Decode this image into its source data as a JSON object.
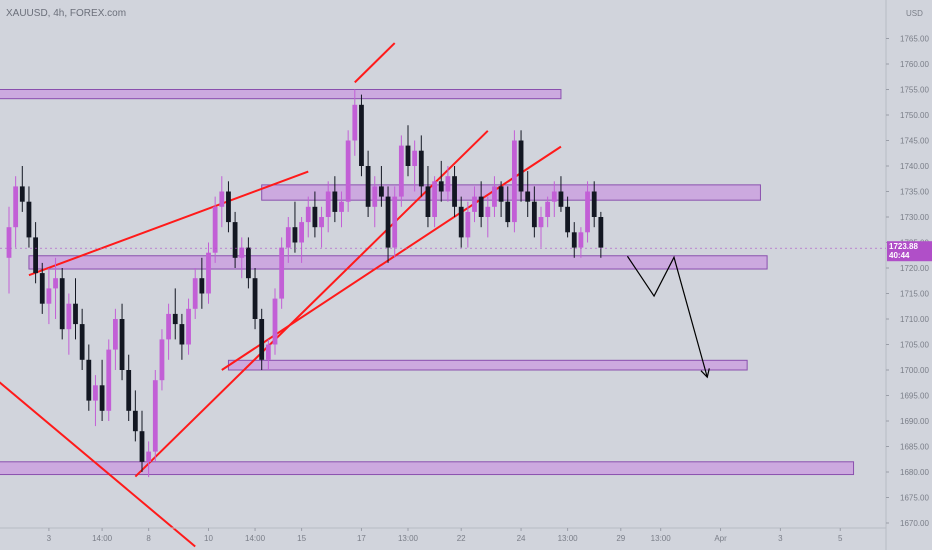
{
  "header": {
    "symbol": "XAUUSD, 4h, FOREX.com",
    "currency": "USD"
  },
  "colors": {
    "background": "#d1d4dc",
    "bull_candle": "#c25fd6",
    "bear_candle": "#131722",
    "zone_fill": "#c99be0",
    "zone_stroke": "#8a4fae",
    "trendline": "#ff1a1a",
    "projection": "#000000",
    "price_badge": "#b04fc8"
  },
  "chart_data": {
    "type": "candlestick",
    "symbol": "XAUUSD",
    "timeframe": "4h",
    "source": "FOREX.com",
    "y_axis": {
      "side": "right",
      "range": [
        1667.5,
        1767.5
      ],
      "tick_step": 5,
      "tick_labels": [
        "1670.00",
        "1675.00",
        "1680.00",
        "1685.00",
        "1690.00",
        "1695.00",
        "1700.00",
        "1705.00",
        "1710.00",
        "1715.00",
        "1720.00",
        "1725.00",
        "1730.00",
        "1735.00",
        "1740.00",
        "1745.00",
        "1750.00",
        "1755.00",
        "1760.00",
        "1765.00"
      ]
    },
    "x_axis": {
      "labels": [
        {
          "bar": 6,
          "label": "3"
        },
        {
          "bar": 14,
          "label": "14:00"
        },
        {
          "bar": 21,
          "label": "8"
        },
        {
          "bar": 30,
          "label": "10"
        },
        {
          "bar": 37,
          "label": "14:00"
        },
        {
          "bar": 44,
          "label": "15"
        },
        {
          "bar": 53,
          "label": "17"
        },
        {
          "bar": 60,
          "label": "13:00"
        },
        {
          "bar": 68,
          "label": "22"
        },
        {
          "bar": 77,
          "label": "24"
        },
        {
          "bar": 84,
          "label": "13:00"
        },
        {
          "bar": 92,
          "label": "29"
        },
        {
          "bar": 98,
          "label": "13:00"
        },
        {
          "bar": 107,
          "label": "Apr"
        },
        {
          "bar": 116,
          "label": "3"
        },
        {
          "bar": 125,
          "label": "5"
        }
      ]
    },
    "last_price": {
      "value": 1723.88,
      "label": "1723.88",
      "countdown": "40:44"
    },
    "grid": false,
    "candles": [
      [
        1722,
        1732,
        1715,
        1728
      ],
      [
        1728,
        1738,
        1724,
        1736
      ],
      [
        1736,
        1740,
        1731,
        1733
      ],
      [
        1733,
        1736,
        1724,
        1726
      ],
      [
        1726,
        1729,
        1717,
        1719
      ],
      [
        1719,
        1721,
        1711,
        1713
      ],
      [
        1713,
        1720,
        1709,
        1716
      ],
      [
        1716,
        1722,
        1710,
        1718
      ],
      [
        1718,
        1720,
        1706,
        1708
      ],
      [
        1708,
        1715,
        1703,
        1713
      ],
      [
        1713,
        1718,
        1706,
        1709
      ],
      [
        1709,
        1712,
        1700,
        1702
      ],
      [
        1702,
        1705,
        1692,
        1694
      ],
      [
        1694,
        1699,
        1689,
        1697
      ],
      [
        1697,
        1702,
        1690,
        1692
      ],
      [
        1692,
        1706,
        1690,
        1704
      ],
      [
        1704,
        1712,
        1700,
        1710
      ],
      [
        1710,
        1713,
        1698,
        1700
      ],
      [
        1700,
        1703,
        1690,
        1692
      ],
      [
        1692,
        1696,
        1686,
        1688
      ],
      [
        1688,
        1692,
        1680,
        1682
      ],
      [
        1682,
        1686,
        1679,
        1684
      ],
      [
        1684,
        1700,
        1682,
        1698
      ],
      [
        1698,
        1708,
        1696,
        1706
      ],
      [
        1706,
        1713,
        1702,
        1711
      ],
      [
        1711,
        1716,
        1706,
        1709
      ],
      [
        1709,
        1711,
        1702,
        1705
      ],
      [
        1705,
        1714,
        1703,
        1712
      ],
      [
        1712,
        1720,
        1710,
        1718
      ],
      [
        1718,
        1722,
        1712,
        1715
      ],
      [
        1715,
        1725,
        1713,
        1723
      ],
      [
        1723,
        1734,
        1721,
        1732
      ],
      [
        1732,
        1738,
        1728,
        1735
      ],
      [
        1735,
        1737,
        1727,
        1729
      ],
      [
        1729,
        1731,
        1720,
        1722
      ],
      [
        1722,
        1726,
        1718,
        1724
      ],
      [
        1724,
        1726,
        1716,
        1718
      ],
      [
        1718,
        1720,
        1708,
        1710
      ],
      [
        1710,
        1712,
        1700,
        1702
      ],
      [
        1702,
        1706,
        1700,
        1705
      ],
      [
        1705,
        1716,
        1703,
        1714
      ],
      [
        1714,
        1726,
        1712,
        1724
      ],
      [
        1724,
        1730,
        1721,
        1728
      ],
      [
        1728,
        1733,
        1723,
        1725
      ],
      [
        1725,
        1730,
        1721,
        1729
      ],
      [
        1729,
        1734,
        1726,
        1732
      ],
      [
        1732,
        1735,
        1726,
        1728
      ],
      [
        1728,
        1732,
        1724,
        1730
      ],
      [
        1730,
        1737,
        1727,
        1735
      ],
      [
        1735,
        1738,
        1729,
        1731
      ],
      [
        1731,
        1735,
        1728,
        1733
      ],
      [
        1733,
        1747,
        1731,
        1745
      ],
      [
        1745,
        1755,
        1742,
        1752
      ],
      [
        1752,
        1754,
        1738,
        1740
      ],
      [
        1740,
        1743,
        1730,
        1732
      ],
      [
        1732,
        1738,
        1728,
        1736
      ],
      [
        1736,
        1740,
        1732,
        1734
      ],
      [
        1734,
        1736,
        1721,
        1724
      ],
      [
        1724,
        1736,
        1722,
        1734
      ],
      [
        1734,
        1746,
        1732,
        1744
      ],
      [
        1744,
        1748,
        1738,
        1740
      ],
      [
        1740,
        1745,
        1735,
        1743
      ],
      [
        1743,
        1746,
        1734,
        1736
      ],
      [
        1736,
        1740,
        1728,
        1730
      ],
      [
        1730,
        1738,
        1728,
        1737
      ],
      [
        1737,
        1741,
        1733,
        1735
      ],
      [
        1735,
        1740,
        1733,
        1738
      ],
      [
        1738,
        1740,
        1730,
        1732
      ],
      [
        1732,
        1734,
        1724,
        1726
      ],
      [
        1726,
        1733,
        1724,
        1731
      ],
      [
        1731,
        1736,
        1729,
        1734
      ],
      [
        1734,
        1737,
        1728,
        1730
      ],
      [
        1730,
        1734,
        1726,
        1732
      ],
      [
        1732,
        1738,
        1730,
        1736
      ],
      [
        1736,
        1737,
        1730,
        1733
      ],
      [
        1733,
        1736,
        1728,
        1729
      ],
      [
        1729,
        1747,
        1727,
        1745
      ],
      [
        1745,
        1747,
        1733,
        1735
      ],
      [
        1735,
        1739,
        1730,
        1733
      ],
      [
        1733,
        1736,
        1726,
        1728
      ],
      [
        1728,
        1732,
        1724,
        1730
      ],
      [
        1730,
        1734,
        1728,
        1733
      ],
      [
        1733,
        1737,
        1730,
        1735
      ],
      [
        1735,
        1738,
        1731,
        1732
      ],
      [
        1732,
        1734,
        1726,
        1727
      ],
      [
        1727,
        1729,
        1722,
        1724
      ],
      [
        1724,
        1728,
        1722,
        1727
      ],
      [
        1727,
        1737,
        1725,
        1735
      ],
      [
        1735,
        1737,
        1728,
        1730
      ],
      [
        1730,
        1731,
        1722,
        1724
      ]
    ],
    "zones": [
      {
        "low": 1753.2,
        "high": 1755.0,
        "from_bar": -4,
        "to_bar": 83
      },
      {
        "low": 1733.3,
        "high": 1736.3,
        "from_bar": 38,
        "to_bar": 113
      },
      {
        "low": 1719.8,
        "high": 1722.4,
        "from_bar": 3,
        "to_bar": 114
      },
      {
        "low": 1700.0,
        "high": 1701.9,
        "from_bar": 33,
        "to_bar": 111
      },
      {
        "low": 1679.5,
        "high": 1682.0,
        "from_bar": -4,
        "to_bar": 127
      }
    ],
    "trendlines": [
      {
        "from": [
          -4,
          1700.4
        ],
        "to": [
          28,
          1665.4
        ]
      },
      {
        "from": [
          3,
          1718.6
        ],
        "to": [
          45,
          1738.9
        ]
      },
      {
        "from": [
          19,
          1679.1
        ],
        "to": [
          72,
          1746.9
        ]
      },
      {
        "from": [
          32,
          1700.0
        ],
        "to": [
          83,
          1743.8
        ]
      },
      {
        "from": [
          52,
          1756.4
        ],
        "to": [
          58,
          1764.1
        ]
      }
    ],
    "projection": {
      "points": [
        [
          93,
          1722.3
        ],
        [
          97,
          1714.5
        ],
        [
          100,
          1722.1
        ],
        [
          105,
          1698.6
        ]
      ],
      "arrow_end": [
        105,
        1698.6
      ]
    }
  }
}
